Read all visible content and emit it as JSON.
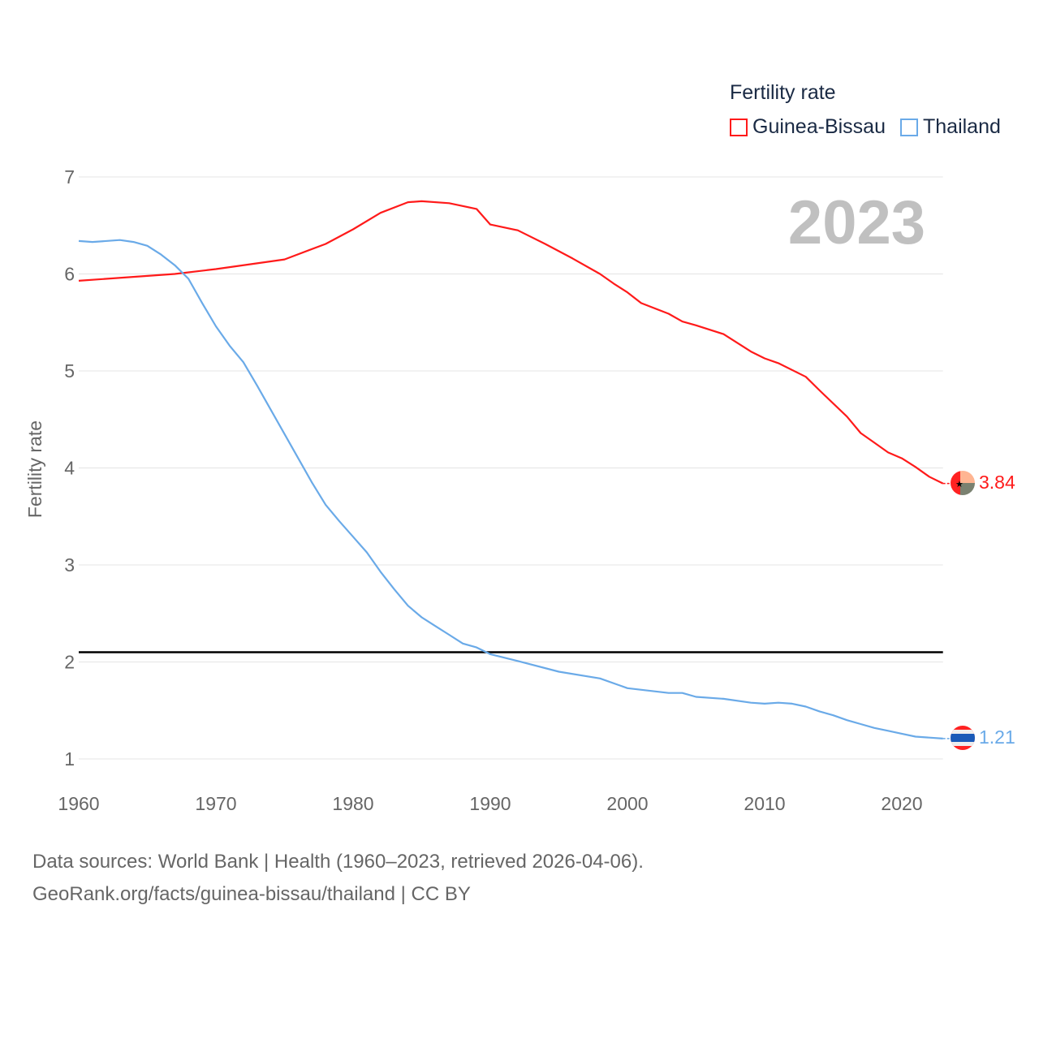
{
  "chart_data": {
    "type": "line",
    "title": "Fertility rate",
    "year_label": "2023",
    "xlabel": "",
    "ylabel": "Fertility rate",
    "xlim": [
      1960,
      2023
    ],
    "ylim": [
      1,
      7
    ],
    "xticks": [
      "1960",
      "1970",
      "1980",
      "1990",
      "2000",
      "2010",
      "2020"
    ],
    "yticks": [
      "1",
      "2",
      "3",
      "4",
      "5",
      "6",
      "7"
    ],
    "grid": true,
    "legend_position": "top-right",
    "reference_line": {
      "value": 2.1,
      "color": "#000000"
    },
    "series": [
      {
        "name": "Guinea-Bissau",
        "color": "#ff1a1a",
        "end_label": "3.84",
        "x": [
          1960,
          1967,
          1970,
          1975,
          1978,
          1980,
          1982,
          1984,
          1985,
          1987,
          1989,
          1990,
          1992,
          1994,
          1996,
          1998,
          1999,
          2000,
          2001,
          2003,
          2004,
          2005,
          2007,
          2009,
          2010,
          2011,
          2013,
          2014,
          2016,
          2017,
          2018,
          2019,
          2020,
          2021,
          2022,
          2023
        ],
        "y": [
          5.93,
          6.0,
          6.05,
          6.15,
          6.31,
          6.46,
          6.63,
          6.74,
          6.75,
          6.73,
          6.67,
          6.51,
          6.45,
          6.31,
          6.16,
          6.0,
          5.9,
          5.81,
          5.7,
          5.59,
          5.51,
          5.47,
          5.38,
          5.2,
          5.13,
          5.08,
          4.94,
          4.8,
          4.53,
          4.36,
          4.26,
          4.16,
          4.1,
          4.01,
          3.91,
          3.84
        ]
      },
      {
        "name": "Thailand",
        "color": "#6aaae8",
        "end_label": "1.21",
        "x": [
          1960,
          1961,
          1963,
          1964,
          1965,
          1966,
          1967,
          1968,
          1969,
          1970,
          1971,
          1972,
          1973,
          1974,
          1975,
          1976,
          1977,
          1978,
          1979,
          1980,
          1981,
          1982,
          1983,
          1984,
          1985,
          1986,
          1987,
          1988,
          1989,
          1990,
          1992,
          1995,
          1998,
          2000,
          2003,
          2004,
          2005,
          2007,
          2009,
          2010,
          2011,
          2012,
          2013,
          2014,
          2015,
          2016,
          2017,
          2018,
          2019,
          2020,
          2021,
          2022,
          2023
        ],
        "y": [
          6.34,
          6.33,
          6.35,
          6.33,
          6.29,
          6.2,
          6.09,
          5.95,
          5.7,
          5.46,
          5.26,
          5.09,
          4.85,
          4.6,
          4.35,
          4.1,
          3.85,
          3.62,
          3.45,
          3.29,
          3.13,
          2.93,
          2.75,
          2.58,
          2.46,
          2.37,
          2.28,
          2.19,
          2.15,
          2.08,
          2.01,
          1.9,
          1.83,
          1.73,
          1.68,
          1.68,
          1.64,
          1.62,
          1.58,
          1.57,
          1.58,
          1.57,
          1.54,
          1.49,
          1.45,
          1.4,
          1.36,
          1.32,
          1.29,
          1.26,
          1.23,
          1.22,
          1.21
        ]
      }
    ]
  },
  "footer": {
    "line1": "Data sources: World Bank | Health (1960–2023, retrieved 2026-04-06).",
    "line2": "GeoRank.org/facts/guinea-bissau/thailand | CC BY"
  }
}
